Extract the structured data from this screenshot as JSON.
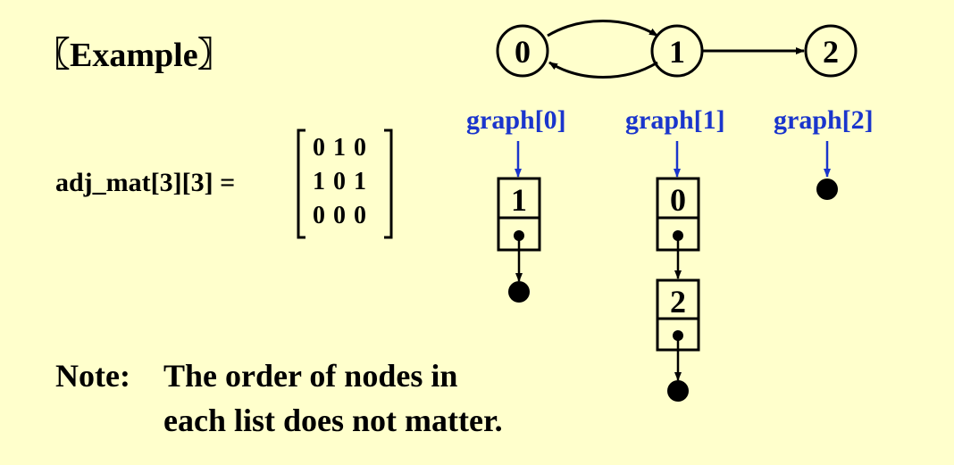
{
  "title": "〖Example〗",
  "matrix": {
    "label": "adj_mat[3][3] =",
    "rows": [
      "0 1 0",
      "1 0 1",
      "0 0 0"
    ]
  },
  "graph": {
    "nodes": [
      "0",
      "1",
      "2"
    ],
    "edges": [
      [
        "0",
        "1"
      ],
      [
        "1",
        "0"
      ],
      [
        "1",
        "2"
      ]
    ]
  },
  "lists": {
    "headers": [
      "graph[0]",
      "graph[1]",
      "graph[2]"
    ],
    "list0": [
      "1"
    ],
    "list1": [
      "0",
      "2"
    ],
    "list2": []
  },
  "note": {
    "label": "Note:",
    "line1": "The order of nodes in",
    "line2": "each list does not matter."
  },
  "colors": {
    "background": "#ffffcc",
    "label_blue": "#1a35cc"
  }
}
